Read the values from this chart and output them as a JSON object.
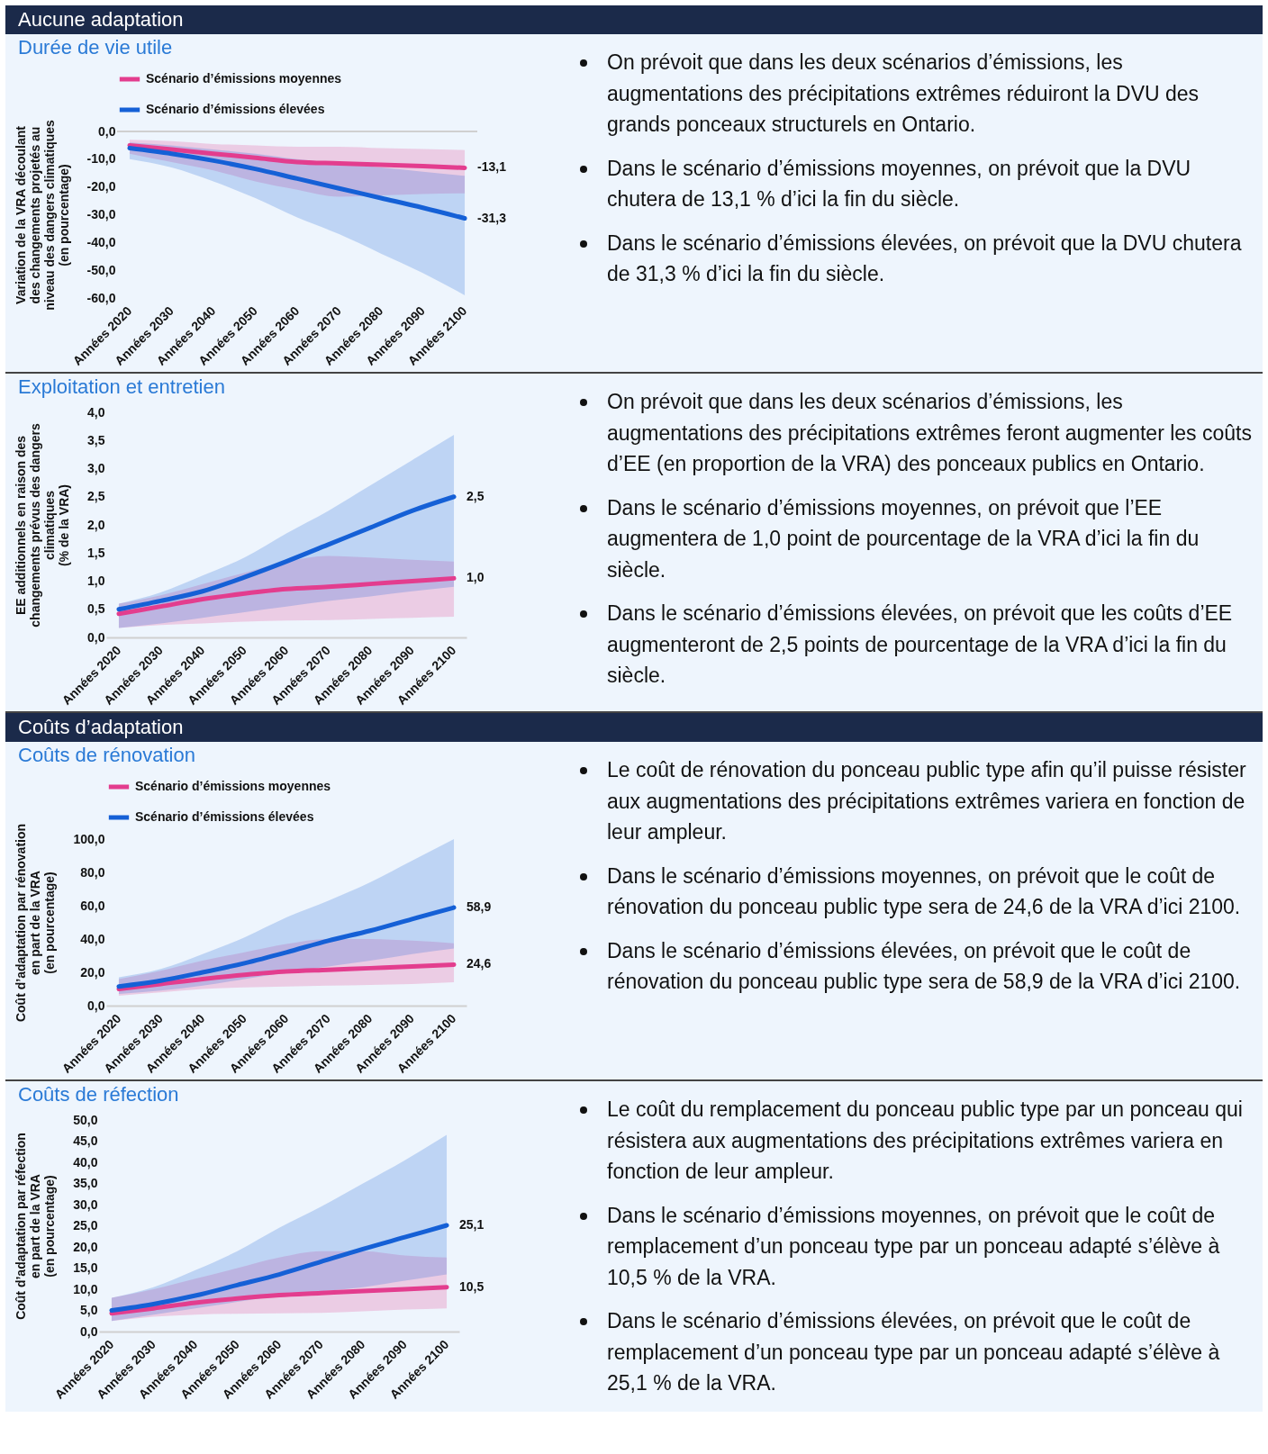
{
  "chart_data": [
    {
      "type": "line",
      "title": "Aucune adaptation",
      "subtitle": "Durée de vie utile",
      "ylabel": "Variation de la VRA découlant\ndes changements projetés au\nniveau des dangers climatiques\n(en pourcentage)",
      "categories": [
        "Années 2020",
        "Années 2030",
        "Années 2040",
        "Années 2050",
        "Années 2060",
        "Années 2070",
        "Années 2080",
        "Années 2090",
        "Années 2100"
      ],
      "series": [
        {
          "name": "Scénario d’émissions moyennes",
          "color": "#e33d8e",
          "values": [
            -5,
            -6.5,
            -8,
            -9.5,
            -11,
            -11.5,
            -12,
            -12.5,
            -13.1
          ],
          "lower": [
            -8,
            -11,
            -14,
            -18,
            -21,
            -23.5,
            -23,
            -22.5,
            -22.3
          ],
          "upper": [
            -3,
            -3.5,
            -4.5,
            -5,
            -5.5,
            -5.5,
            -6,
            -6.3,
            -6.7
          ],
          "value_labels": [
            null,
            null,
            null,
            null,
            null,
            null,
            null,
            null,
            "-13,1"
          ]
        },
        {
          "name": "Scénario d’émissions élevées",
          "color": "#1560d6",
          "values": [
            -6,
            -8,
            -10.5,
            -13.5,
            -17,
            -20.5,
            -24,
            -27.5,
            -31.3
          ],
          "lower": [
            -10,
            -13,
            -18,
            -24,
            -31,
            -37,
            -44,
            -51,
            -59
          ],
          "upper": [
            -4,
            -5,
            -6.5,
            -8,
            -10,
            -11.5,
            -13,
            -14.5,
            -16
          ],
          "value_labels": [
            null,
            null,
            null,
            null,
            null,
            null,
            null,
            null,
            "-31,3"
          ]
        }
      ],
      "ylim": [
        -60,
        0
      ],
      "yticks": [
        {
          "value": 0,
          "label": "0,0"
        },
        {
          "value": -10,
          "label": "-10,0"
        },
        {
          "value": -20,
          "label": "-20,0"
        },
        {
          "value": -30,
          "label": "-30,0"
        },
        {
          "value": -40,
          "label": "-40,0"
        },
        {
          "value": -50,
          "label": "-50,0"
        },
        {
          "value": -60,
          "label": "-60,0"
        }
      ],
      "ref_lines": [
        {
          "axis": "y",
          "value": 0,
          "color": "#d0d0d0"
        }
      ],
      "legend": "top",
      "annotations": [
        "On prévoit que dans les deux scénarios d’émissions, les augmentations des précipitations extrêmes réduiront la DVU des grands ponceaux structurels en Ontario.",
        "Dans le scénario d’émissions moyennes, on prévoit que la DVU chutera de 13,1 % d’ici la fin du siècle.",
        "Dans le scénario d’émissions élevées, on prévoit que la DVU chutera de 31,3 % d’ici la fin du siècle."
      ]
    },
    {
      "type": "line",
      "subtitle": "Exploitation et entretien",
      "ylabel": "EE additionnels en raison des\nchangements prévus des dangers\nclimatiques\n(% de la VRA)",
      "categories": [
        "Années 2020",
        "Années 2030",
        "Années 2040",
        "Années 2050",
        "Années 2060",
        "Années 2070",
        "Années 2080",
        "Années 2090",
        "Années 2100"
      ],
      "series": [
        {
          "color": "#e33d8e",
          "values": [
            0.42,
            0.55,
            0.68,
            0.78,
            0.86,
            0.9,
            0.95,
            1.0,
            1.05
          ],
          "lower": [
            0.17,
            0.22,
            0.25,
            0.28,
            0.3,
            0.31,
            0.33,
            0.35,
            0.37
          ],
          "upper": [
            0.6,
            0.75,
            0.95,
            1.15,
            1.35,
            1.45,
            1.42,
            1.38,
            1.35
          ],
          "value_labels": [
            null,
            null,
            null,
            null,
            null,
            null,
            null,
            null,
            "1,0"
          ]
        },
        {
          "color": "#1560d6",
          "values": [
            0.5,
            0.65,
            0.82,
            1.07,
            1.35,
            1.65,
            1.95,
            2.25,
            2.5
          ],
          "lower": [
            0.17,
            0.25,
            0.35,
            0.45,
            0.55,
            0.65,
            0.73,
            0.82,
            0.9
          ],
          "upper": [
            0.6,
            0.8,
            1.1,
            1.42,
            1.85,
            2.25,
            2.7,
            3.15,
            3.6
          ],
          "value_labels": [
            null,
            null,
            null,
            null,
            null,
            null,
            null,
            null,
            "2,5"
          ]
        }
      ],
      "ylim": [
        0,
        4
      ],
      "yticks": [
        {
          "value": 0,
          "label": "0,0"
        },
        {
          "value": 0.5,
          "label": "0,5"
        },
        {
          "value": 1,
          "label": "1,0"
        },
        {
          "value": 1.5,
          "label": "1,5"
        },
        {
          "value": 2,
          "label": "2,0"
        },
        {
          "value": 2.5,
          "label": "2,5"
        },
        {
          "value": 3,
          "label": "3,0"
        },
        {
          "value": 3.5,
          "label": "3,5"
        },
        {
          "value": 4,
          "label": "4,0"
        }
      ],
      "annotations": [
        "On prévoit que dans les deux scénarios d’émissions, les augmentations des précipitations extrêmes feront augmenter les coûts d’EE (en proportion de la VRA) des ponceaux publics en Ontario.",
        "Dans le scénario d’émissions moyennes, on prévoit que l’EE augmentera de 1,0 point de pourcentage de la VRA d’ici la fin du siècle.",
        "Dans le scénario d’émissions élevées, on prévoit que les coûts d’EE augmenteront de 2,5 points de pourcentage de la VRA d’ici la fin du siècle."
      ]
    },
    {
      "type": "line",
      "title": "Coûts d’adaptation",
      "subtitle": "Coûts de rénovation",
      "ylabel": "Coût d’adaptation par rénovation\nen part de la VRA\n(en pourcentage)",
      "categories": [
        "Années 2020",
        "Années 2030",
        "Années 2040",
        "Années 2050",
        "Années 2060",
        "Années 2070",
        "Années 2080",
        "Années 2090",
        "Années 2100"
      ],
      "series": [
        {
          "name": "Scénario d’émissions moyennes",
          "color": "#e33d8e",
          "values": [
            10,
            13,
            16,
            18.5,
            20.5,
            21.5,
            22.5,
            23.5,
            24.6
          ],
          "lower": [
            6,
            8,
            10,
            11,
            11.5,
            12,
            12.5,
            13,
            14
          ],
          "upper": [
            16,
            21,
            27,
            32,
            37,
            40,
            40,
            39,
            37.5
          ],
          "value_labels": [
            null,
            null,
            null,
            null,
            null,
            null,
            null,
            null,
            "24,6"
          ]
        },
        {
          "name": "Scénario d’émissions élevées",
          "color": "#1560d6",
          "values": [
            11.5,
            15,
            20,
            25.5,
            32,
            39,
            45,
            52,
            58.9
          ],
          "lower": [
            7,
            9,
            12,
            16,
            20,
            23.5,
            27,
            31,
            34.3
          ],
          "upper": [
            17,
            22,
            31,
            41,
            53,
            63,
            74,
            87,
            100
          ],
          "value_labels": [
            null,
            null,
            null,
            null,
            null,
            null,
            null,
            null,
            "58,9"
          ]
        }
      ],
      "ylim": [
        0,
        100
      ],
      "yticks": [
        {
          "value": 0,
          "label": "0,0"
        },
        {
          "value": 20,
          "label": "20,0"
        },
        {
          "value": 40,
          "label": "40,0"
        },
        {
          "value": 60,
          "label": "60,0"
        },
        {
          "value": 80,
          "label": "80,0"
        },
        {
          "value": 100,
          "label": "100,0"
        }
      ],
      "legend": "top",
      "annotations": [
        "Le coût de rénovation du ponceau public type afin qu’il puisse résister aux augmentations des précipitations extrêmes variera en fonction de leur ampleur.",
        "Dans le scénario d’émissions moyennes, on prévoit que le coût de rénovation du ponceau public type sera de 24,6 de la VRA d’ici 2100.",
        "Dans le scénario d’émissions élevées, on prévoit que le coût de rénovation du ponceau public type sera de 58,9 de la VRA d’ici 2100."
      ]
    },
    {
      "type": "line",
      "subtitle": "Coûts de réfection",
      "ylabel": "Coût d’adaptation par réfection\nen part de la VRA\n(en pourcentage)",
      "categories": [
        "Années 2020",
        "Années 2030",
        "Années 2040",
        "Années 2050",
        "Années 2060",
        "Années 2070",
        "Années 2080",
        "Années 2090",
        "Années 2100"
      ],
      "series": [
        {
          "color": "#e33d8e",
          "values": [
            4.3,
            5.5,
            6.8,
            7.8,
            8.6,
            9.1,
            9.6,
            10.0,
            10.5
          ],
          "lower": [
            2.5,
            3.5,
            4,
            4.2,
            4.3,
            4.4,
            4.8,
            5.2,
            5.5
          ],
          "upper": [
            8,
            10,
            12.5,
            15,
            17.5,
            19,
            19,
            18,
            17.5
          ],
          "value_labels": [
            null,
            null,
            null,
            null,
            null,
            null,
            null,
            null,
            "10,5"
          ]
        },
        {
          "color": "#1560d6",
          "values": [
            5,
            6.5,
            8.5,
            11,
            13.5,
            16.5,
            19.5,
            22.3,
            25.1
          ],
          "lower": [
            2.5,
            4,
            5.5,
            7,
            8.5,
            9.5,
            10.5,
            12,
            13.5
          ],
          "upper": [
            8,
            10.5,
            14.5,
            19,
            24.5,
            29.5,
            35,
            40.5,
            46.5
          ],
          "value_labels": [
            null,
            null,
            null,
            null,
            null,
            null,
            null,
            null,
            "25,1"
          ]
        }
      ],
      "ylim": [
        0,
        50
      ],
      "yticks": [
        {
          "value": 0,
          "label": "0,0"
        },
        {
          "value": 5,
          "label": "5,0"
        },
        {
          "value": 10,
          "label": "10,0"
        },
        {
          "value": 15,
          "label": "15,0"
        },
        {
          "value": 20,
          "label": "20,0"
        },
        {
          "value": 25,
          "label": "25,0"
        },
        {
          "value": 30,
          "label": "30,0"
        },
        {
          "value": 35,
          "label": "35,0"
        },
        {
          "value": 40,
          "label": "40,0"
        },
        {
          "value": 45,
          "label": "45,0"
        },
        {
          "value": 50,
          "label": "50,0"
        }
      ],
      "annotations": [
        "Le coût du remplacement du ponceau public type par un ponceau qui résistera aux augmentations des précipitations extrêmes variera en fonction de leur ampleur.",
        "Dans le scénario d’émissions moyennes, on prévoit que le coût de remplacement d’un ponceau type par un ponceau adapté s’élève à 10,5 % de la VRA.",
        "Dans le scénario d’émissions élevées, on prévoit que le coût de remplacement d’un ponceau type par un ponceau adapté s’élève à 25,1 % de la VRA."
      ]
    }
  ]
}
